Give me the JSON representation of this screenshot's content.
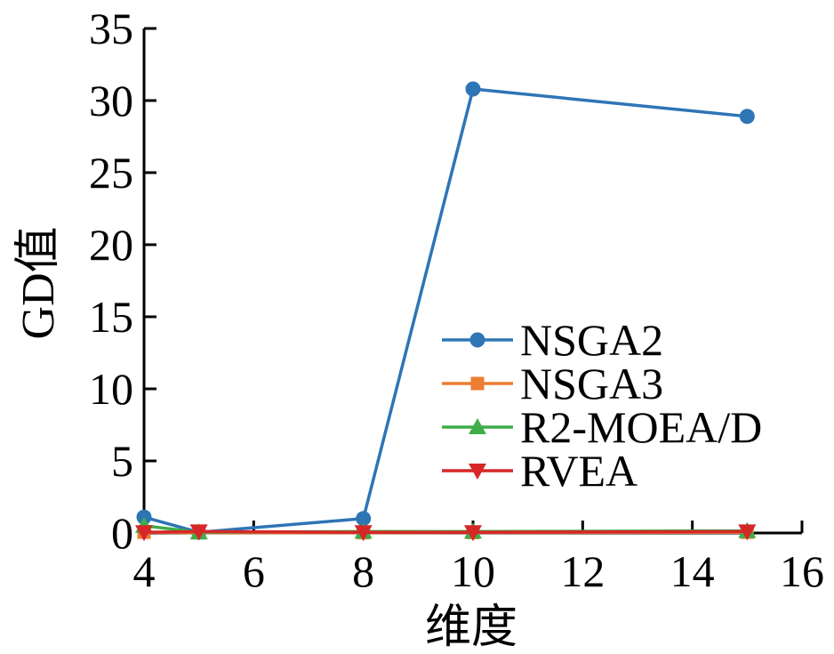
{
  "chart_data": {
    "type": "line",
    "title": "",
    "xlabel": "维度",
    "ylabel": "GD值",
    "xlim": [
      4,
      16
    ],
    "ylim": [
      0,
      35
    ],
    "xticks": [
      4,
      6,
      8,
      10,
      12,
      14,
      16
    ],
    "yticks": [
      0,
      5,
      10,
      15,
      20,
      25,
      30,
      35
    ],
    "grid": false,
    "legend_position": "center-right",
    "series": [
      {
        "name": "NSGA2",
        "color": "#2e75b6",
        "marker": "circle",
        "x": [
          4,
          5,
          8,
          10,
          15
        ],
        "y": [
          1.1,
          0.05,
          1.0,
          30.8,
          28.9
        ]
      },
      {
        "name": "NSGA3",
        "color": "#ed7d31",
        "marker": "square",
        "x": [
          4,
          5,
          8,
          10,
          15
        ],
        "y": [
          0.05,
          0.02,
          0.02,
          0.03,
          0.05
        ]
      },
      {
        "name": "R2-MOEA/D",
        "color": "#3fae49",
        "marker": "triangle-up",
        "x": [
          4,
          5,
          8,
          10,
          15
        ],
        "y": [
          0.5,
          0.05,
          0.1,
          0.1,
          0.15
        ]
      },
      {
        "name": "RVEA",
        "color": "#d62728",
        "marker": "triangle-down",
        "x": [
          4,
          5,
          8,
          10,
          15
        ],
        "y": [
          0.05,
          0.1,
          0.05,
          0.05,
          0.1
        ]
      }
    ]
  }
}
